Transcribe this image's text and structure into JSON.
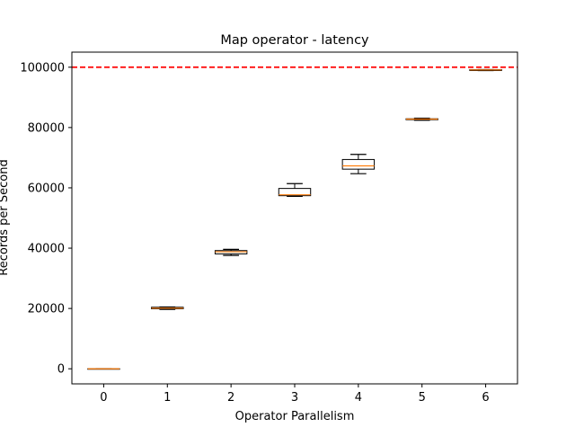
{
  "chart_data": {
    "type": "box",
    "title": "Map operator - latency",
    "xlabel": "Operator Parallelism",
    "ylabel": "Records per Second",
    "categories": [
      "0",
      "1",
      "2",
      "3",
      "4",
      "5",
      "6"
    ],
    "ylim": [
      -5000,
      105000
    ],
    "yticks": [
      0,
      20000,
      40000,
      60000,
      80000,
      100000
    ],
    "ytick_labels": [
      "0",
      "20000",
      "40000",
      "60000",
      "80000",
      "100000"
    ],
    "boxes": [
      {
        "category": "0",
        "whisker_low": 0,
        "q1": 0,
        "median": 0,
        "q3": 0,
        "whisker_high": 0
      },
      {
        "category": "1",
        "whisker_low": 19700,
        "q1": 19900,
        "median": 20100,
        "q3": 20400,
        "whisker_high": 20500
      },
      {
        "category": "2",
        "whisker_low": 37600,
        "q1": 38100,
        "median": 38800,
        "q3": 39200,
        "whisker_high": 39600
      },
      {
        "category": "3",
        "whisker_low": 57200,
        "q1": 57400,
        "median": 57700,
        "q3": 59800,
        "whisker_high": 61400
      },
      {
        "category": "4",
        "whisker_low": 64700,
        "q1": 66200,
        "median": 67300,
        "q3": 69400,
        "whisker_high": 71100
      },
      {
        "category": "5",
        "whisker_low": 82400,
        "q1": 82600,
        "median": 82800,
        "q3": 82900,
        "whisker_high": 83100
      },
      {
        "category": "6",
        "whisker_low": 98900,
        "q1": 98900,
        "median": 99100,
        "q3": 99200,
        "whisker_high": 99200
      }
    ],
    "reference_line": {
      "y": 100000,
      "color": "#ff0000",
      "style": "dashed"
    },
    "colors": {
      "box": "#000000",
      "median": "#ff7f0e",
      "reference": "#ff0000"
    },
    "grid": false,
    "legend": "none"
  }
}
